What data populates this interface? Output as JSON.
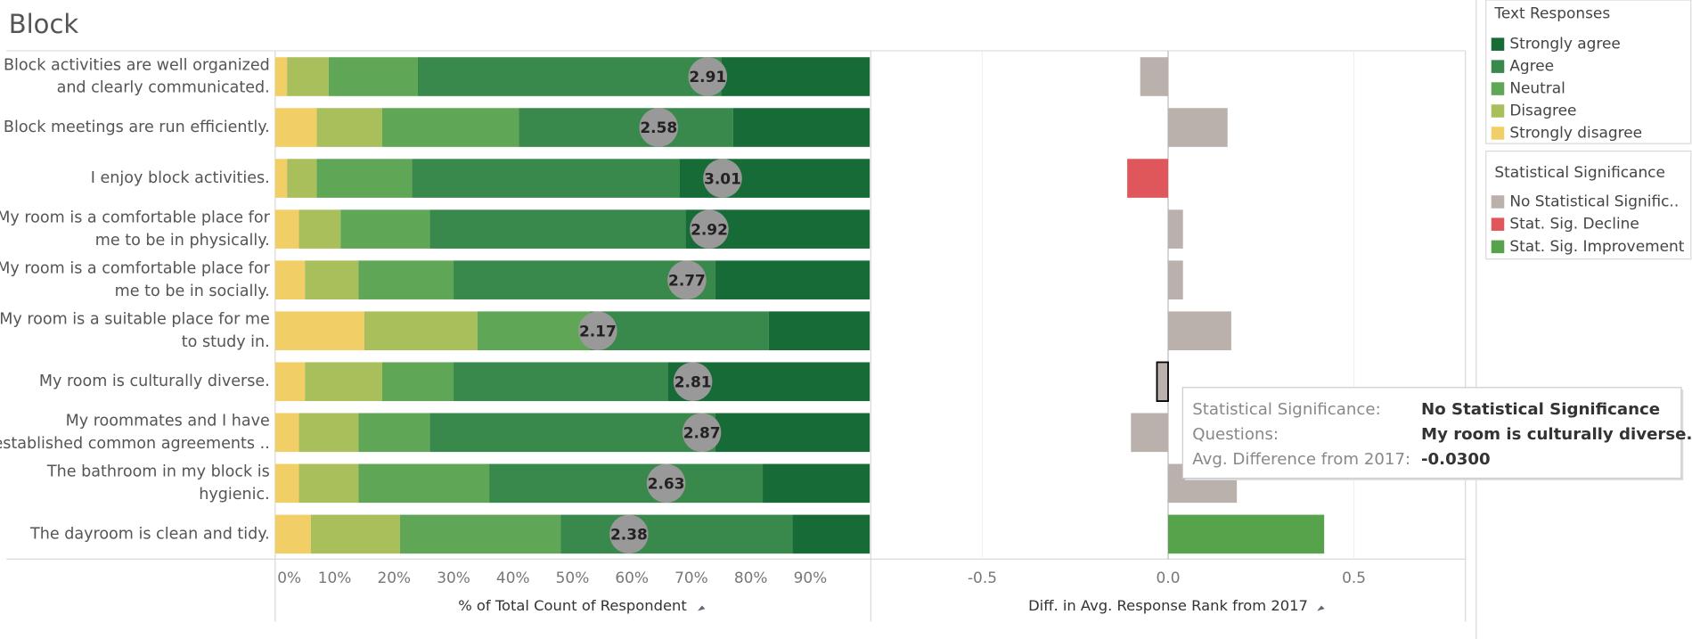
{
  "header": {
    "title": "Block"
  },
  "chart_data": [
    {
      "type": "stacked-bar-h",
      "categories": [
        [
          "Block activities are well organized",
          "and clearly communicated."
        ],
        [
          "Block meetings are run efficiently."
        ],
        [
          "I enjoy block activities."
        ],
        [
          "My room is a comfortable place for",
          "me to be in physically."
        ],
        [
          "My room is a comfortable place for",
          "me to be in socially."
        ],
        [
          "My room is a suitable place for me",
          "to study in."
        ],
        [
          "My room is culturally diverse."
        ],
        [
          "My roommates and I have",
          "established common agreements .."
        ],
        [
          "The bathroom in my block is",
          "hygienic."
        ],
        [
          "The dayroom is clean and tidy."
        ]
      ],
      "legend_title": "Text Responses",
      "series": [
        {
          "name": "Strongly agree",
          "color": "#176b37",
          "values": [
            25,
            23,
            32,
            31,
            26,
            17,
            34,
            26,
            18,
            13
          ]
        },
        {
          "name": "Agree",
          "color": "#38894b",
          "values": [
            51,
            36,
            45,
            43,
            44,
            30,
            36,
            48,
            46,
            39
          ]
        },
        {
          "name": "Neutral",
          "color": "#5fa757",
          "values": [
            15,
            23,
            16,
            15,
            16,
            19,
            12,
            12,
            22,
            27
          ]
        },
        {
          "name": "Disagree",
          "color": "#a8bf5c",
          "values": [
            7,
            11,
            5,
            7,
            9,
            19,
            13,
            10,
            10,
            15
          ]
        },
        {
          "name": "Strongly disagree",
          "color": "#f2cf66",
          "values": [
            2,
            7,
            2,
            4,
            5,
            15,
            5,
            4,
            4,
            6
          ]
        }
      ],
      "averages": [
        2.91,
        2.58,
        3.01,
        2.92,
        2.77,
        2.17,
        2.81,
        2.87,
        2.63,
        2.38
      ],
      "x2lim": [
        0,
        4
      ],
      "xlim": [
        0,
        100
      ],
      "xticks": [
        {
          "value": 0,
          "label": "0%"
        },
        {
          "value": 10,
          "label": "10%"
        },
        {
          "value": 20,
          "label": "20%"
        },
        {
          "value": 30,
          "label": "30%"
        },
        {
          "value": 40,
          "label": "40%"
        },
        {
          "value": 50,
          "label": "50%"
        },
        {
          "value": 60,
          "label": "60%"
        },
        {
          "value": 70,
          "label": "70%"
        },
        {
          "value": 80,
          "label": "80%"
        },
        {
          "value": 90,
          "label": "90%"
        }
      ],
      "xlabel": "% of Total Count of Respondent"
    },
    {
      "type": "bar-h",
      "values": [
        -0.075,
        0.16,
        -0.11,
        0.04,
        0.04,
        0.17,
        -0.03,
        -0.1,
        0.185,
        0.42
      ],
      "colors": [
        "#bab1ad",
        "#bab1ad",
        "#e0575b",
        "#bab1ad",
        "#bab1ad",
        "#bab1ad",
        "#bab1ad",
        "#bab1ad",
        "#bab1ad",
        "#57a34c"
      ],
      "legend_title": "Statistical Significance",
      "groups": [
        {
          "name": "No Statistical Signific..",
          "color": "#bab1ad"
        },
        {
          "name": "Stat. Sig. Decline",
          "color": "#e0575b"
        },
        {
          "name": "Stat. Sig. Improvement",
          "color": "#57a34c"
        }
      ],
      "xlim": [
        -0.8,
        0.8
      ],
      "xticks": [
        -0.5,
        {
          "value": 0,
          "label": "0.0"
        },
        0.5
      ],
      "grid": true,
      "xlabel": "Diff. in Avg. Response Rank from 2017"
    }
  ],
  "tooltip": {
    "rows": [
      {
        "label": "Statistical Significance:",
        "value": "No Statistical Significance"
      },
      {
        "label": "Questions:",
        "value": "My room is culturally diverse."
      },
      {
        "label": "Avg. Difference from 2017:",
        "value": "-0.0300"
      }
    ]
  }
}
